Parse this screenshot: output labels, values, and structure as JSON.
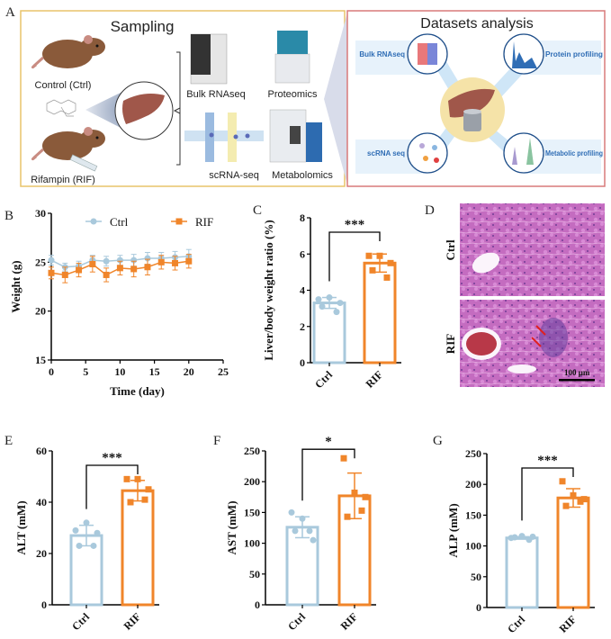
{
  "panel_letters": {
    "a": "A",
    "b": "B",
    "c": "C",
    "d": "D",
    "e": "E",
    "f": "F",
    "g": "G"
  },
  "colors": {
    "ctrl": "#a9c9dc",
    "rif": "#f0852a",
    "sampling_border": "#e8c46a",
    "analysis_border": "#d87a7a",
    "text_blue": "#2f6db5"
  },
  "panel_a": {
    "sampling": {
      "title": "Sampling",
      "control_label": "Control (Ctrl)",
      "rifampin_label": "Rifampin (RIF)",
      "methods": [
        "Bulk RNAseq",
        "Proteomics",
        "scRNA-seq",
        "Metabolomics"
      ]
    },
    "analysis": {
      "title": "Datasets analysis",
      "items": [
        "Bulk RNAseq",
        "Protein profiling",
        "scRNA seq",
        "Metabolic profiling"
      ]
    }
  },
  "panel_d": {
    "row_labels": [
      "Ctrl",
      "RIF"
    ],
    "scale_bar": "100 μm"
  },
  "chart_data": [
    {
      "panel": "B",
      "type": "line",
      "xlabel": "Time (day)",
      "ylabel": "Weight (g)",
      "xlim": [
        0,
        25
      ],
      "ylim": [
        15,
        30
      ],
      "xticks": [
        0,
        5,
        10,
        15,
        20,
        25
      ],
      "yticks": [
        15,
        20,
        25,
        30
      ],
      "legend": "top",
      "x": [
        0,
        2,
        4,
        6,
        8,
        10,
        12,
        14,
        16,
        18,
        20
      ],
      "series": [
        {
          "name": "Ctrl",
          "marker": "circle",
          "values": [
            25.2,
            24.5,
            24.6,
            25.2,
            25.1,
            25.2,
            25.2,
            25.4,
            25.4,
            25.5,
            25.6
          ],
          "error": [
            0.5,
            0.4,
            0.5,
            0.5,
            0.5,
            0.5,
            0.6,
            0.6,
            0.6,
            0.6,
            0.7
          ]
        },
        {
          "name": "RIF",
          "marker": "square",
          "values": [
            23.9,
            23.7,
            24.2,
            24.8,
            23.7,
            24.4,
            24.3,
            24.5,
            25.0,
            24.9,
            25.1
          ],
          "error": [
            0.6,
            0.8,
            0.7,
            0.8,
            0.7,
            0.7,
            0.8,
            0.8,
            0.7,
            0.7,
            0.7
          ]
        }
      ]
    },
    {
      "panel": "C",
      "type": "bar",
      "ylabel": "Liver/body weight ratio (%)",
      "ylim": [
        0,
        8
      ],
      "yticks": [
        0,
        2,
        4,
        6,
        8
      ],
      "categories": [
        "Ctrl",
        "RIF"
      ],
      "values": [
        3.3,
        5.5
      ],
      "error": [
        0.3,
        0.5
      ],
      "points": [
        [
          3.5,
          3.6,
          3.3,
          3.1,
          2.8
        ],
        [
          5.9,
          5.9,
          5.5,
          5.1,
          4.7
        ]
      ],
      "significance": "***"
    },
    {
      "panel": "E",
      "type": "bar",
      "ylabel": "ALT (mM)",
      "ylim": [
        0,
        60
      ],
      "yticks": [
        0,
        20,
        40,
        60
      ],
      "categories": [
        "Ctrl",
        "RIF"
      ],
      "values": [
        27,
        44.5
      ],
      "error": [
        4,
        4
      ],
      "points": [
        [
          29,
          32,
          28,
          23,
          23
        ],
        [
          49,
          49,
          45,
          40,
          41
        ]
      ],
      "significance": "***"
    },
    {
      "panel": "F",
      "type": "bar",
      "ylabel": "AST (mM)",
      "ylim": [
        0,
        250
      ],
      "yticks": [
        0,
        50,
        100,
        150,
        200,
        250
      ],
      "categories": [
        "Ctrl",
        "RIF"
      ],
      "values": [
        126,
        177
      ],
      "error": [
        17,
        37
      ],
      "points": [
        [
          150,
          140,
          105,
          120,
          120
        ],
        [
          238,
          182,
          175,
          143,
          153
        ]
      ],
      "significance": "*"
    },
    {
      "panel": "G",
      "type": "bar",
      "ylabel": "ALP (mM)",
      "ylim": [
        0,
        250
      ],
      "yticks": [
        0,
        50,
        100,
        150,
        200,
        250
      ],
      "categories": [
        "Ctrl",
        "RIF"
      ],
      "values": [
        113,
        178
      ],
      "error": [
        2,
        15
      ],
      "points": [
        [
          113,
          116,
          115,
          114,
          110
        ],
        [
          205,
          182,
          176,
          165,
          172
        ]
      ],
      "significance": "***"
    }
  ]
}
